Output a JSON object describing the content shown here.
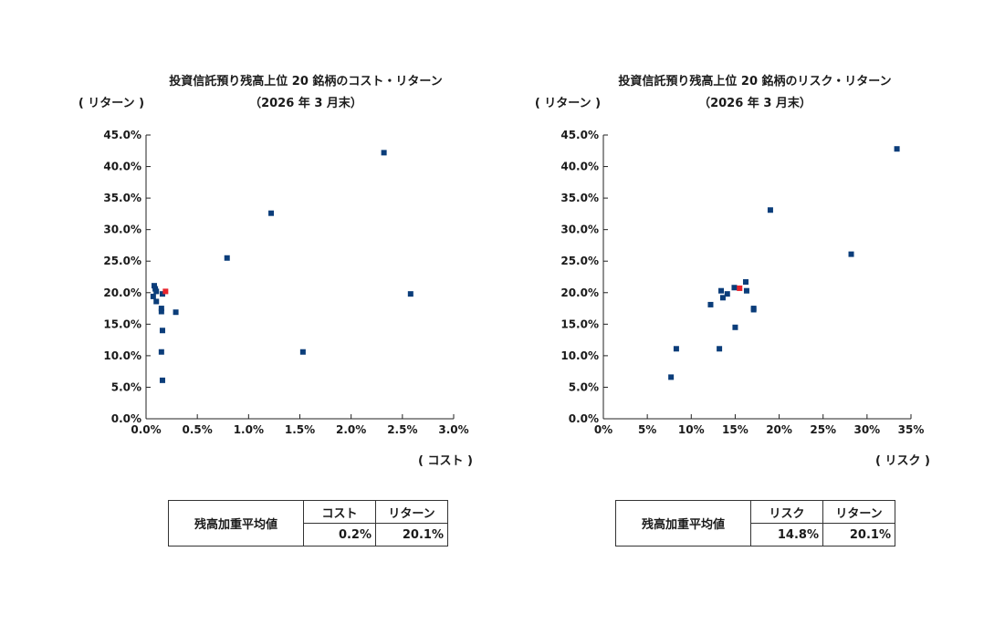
{
  "colors": {
    "point": "#0b3d7a",
    "highlight": "#e8242c",
    "axis": "#222222"
  },
  "chart_data": [
    {
      "type": "scatter",
      "title": "投資信託預り残高上位 20 銘柄のコスト・リターン",
      "subtitle": "（2026 年 3 月末）",
      "xlabel": "( コスト )",
      "ylabel": "( リターン )",
      "xlim": [
        0,
        3.0
      ],
      "ylim": [
        0,
        45
      ],
      "x_ticks": [
        0,
        0.5,
        1.0,
        1.5,
        2.0,
        2.5,
        3.0
      ],
      "x_tick_labels": [
        "0.0%",
        "0.5%",
        "1.0%",
        "1.5%",
        "2.0%",
        "2.5%",
        "3.0%"
      ],
      "y_ticks": [
        0,
        5,
        10,
        15,
        20,
        25,
        30,
        35,
        40,
        45
      ],
      "y_tick_labels": [
        "0.0%",
        "5.0%",
        "10.0%",
        "15.0%",
        "20.0%",
        "25.0%",
        "30.0%",
        "35.0%",
        "40.0%",
        "45.0%"
      ],
      "points": [
        {
          "x": 2.32,
          "y": 42.2
        },
        {
          "x": 1.22,
          "y": 32.6
        },
        {
          "x": 0.79,
          "y": 25.5
        },
        {
          "x": 2.58,
          "y": 19.8
        },
        {
          "x": 1.53,
          "y": 10.6
        },
        {
          "x": 0.08,
          "y": 21.1
        },
        {
          "x": 0.09,
          "y": 20.6
        },
        {
          "x": 0.1,
          "y": 20.2
        },
        {
          "x": 0.16,
          "y": 19.8
        },
        {
          "x": 0.07,
          "y": 19.4
        },
        {
          "x": 0.1,
          "y": 18.6
        },
        {
          "x": 0.15,
          "y": 17.5
        },
        {
          "x": 0.15,
          "y": 17.0
        },
        {
          "x": 0.29,
          "y": 16.9
        },
        {
          "x": 0.16,
          "y": 14.0
        },
        {
          "x": 0.15,
          "y": 10.6
        },
        {
          "x": 0.16,
          "y": 6.1
        }
      ],
      "highlight": {
        "x": 0.19,
        "y": 20.2
      }
    },
    {
      "type": "scatter",
      "title": "投資信託預り残高上位 20 銘柄のリスク・リターン",
      "subtitle": "（2026 年 3 月末）",
      "xlabel": "( リスク )",
      "ylabel": "( リターン )",
      "xlim": [
        0,
        35
      ],
      "ylim": [
        0,
        45
      ],
      "x_ticks": [
        0,
        5,
        10,
        15,
        20,
        25,
        30,
        35
      ],
      "x_tick_labels": [
        "0%",
        "5%",
        "10%",
        "15%",
        "20%",
        "25%",
        "30%",
        "35%"
      ],
      "y_ticks": [
        0,
        5,
        10,
        15,
        20,
        25,
        30,
        35,
        40,
        45
      ],
      "y_tick_labels": [
        "0.0%",
        "5.0%",
        "10.0%",
        "15.0%",
        "20.0%",
        "25.0%",
        "30.0%",
        "35.0%",
        "40.0%",
        "45.0%"
      ],
      "points": [
        {
          "x": 33.4,
          "y": 42.8
        },
        {
          "x": 19.0,
          "y": 33.1
        },
        {
          "x": 28.2,
          "y": 26.1
        },
        {
          "x": 16.2,
          "y": 21.7
        },
        {
          "x": 14.9,
          "y": 20.8
        },
        {
          "x": 13.4,
          "y": 20.3
        },
        {
          "x": 16.3,
          "y": 20.3
        },
        {
          "x": 14.1,
          "y": 19.8
        },
        {
          "x": 13.6,
          "y": 19.2
        },
        {
          "x": 12.2,
          "y": 18.1
        },
        {
          "x": 17.1,
          "y": 17.5
        },
        {
          "x": 17.1,
          "y": 17.3
        },
        {
          "x": 15.0,
          "y": 14.5
        },
        {
          "x": 8.3,
          "y": 11.1
        },
        {
          "x": 13.2,
          "y": 11.1
        },
        {
          "x": 7.7,
          "y": 6.6
        }
      ],
      "highlight": {
        "x": 15.5,
        "y": 20.7
      }
    }
  ],
  "tables": {
    "cost": {
      "row_label": "残高加重平均値",
      "col1_label": "コスト",
      "col2_label": "リターン",
      "col1_value": "0.2%",
      "col2_value": "20.1%"
    },
    "risk": {
      "row_label": "残高加重平均値",
      "col1_label": "リスク",
      "col2_label": "リターン",
      "col1_value": "14.8%",
      "col2_value": "20.1%"
    }
  }
}
